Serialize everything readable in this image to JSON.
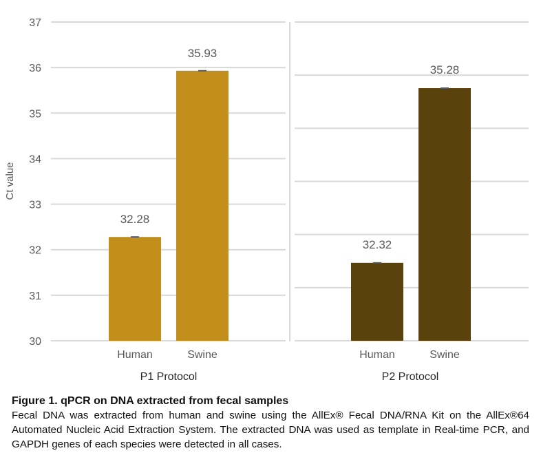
{
  "chart_data": [
    {
      "type": "bar",
      "panel_title": "P1 Protocol",
      "ylabel": "Ct value",
      "ylim": [
        30,
        37
      ],
      "yticks": [
        30,
        31,
        32,
        33,
        34,
        35,
        36,
        37
      ],
      "categories": [
        "Human",
        "Swine"
      ],
      "values": [
        32.28,
        35.93
      ],
      "data_labels": [
        "32.28",
        "35.93"
      ],
      "bar_color": "#C28F1C",
      "grid": true
    },
    {
      "type": "bar",
      "panel_title": "P2 Protocol",
      "categories": [
        "Human",
        "Swine"
      ],
      "values": [
        32.32,
        35.28
      ],
      "data_labels": [
        "32.32",
        "35.28"
      ],
      "bar_color": "#5B420C",
      "grid": true
    }
  ],
  "caption": {
    "title": "Figure 1. qPCR on DNA extracted from fecal samples",
    "body": "Fecal DNA was extracted from human and swine using the AllEx® Fecal DNA/RNA Kit on the AllEx®64 Automated Nucleic Acid Extraction System. The extracted DNA was used as template in Real-time PCR, and GAPDH genes of each species were detected in all cases."
  },
  "colors": {
    "grid": "#D9D9D9",
    "divider": "#D9D9D9",
    "errorbar": "#595959"
  }
}
